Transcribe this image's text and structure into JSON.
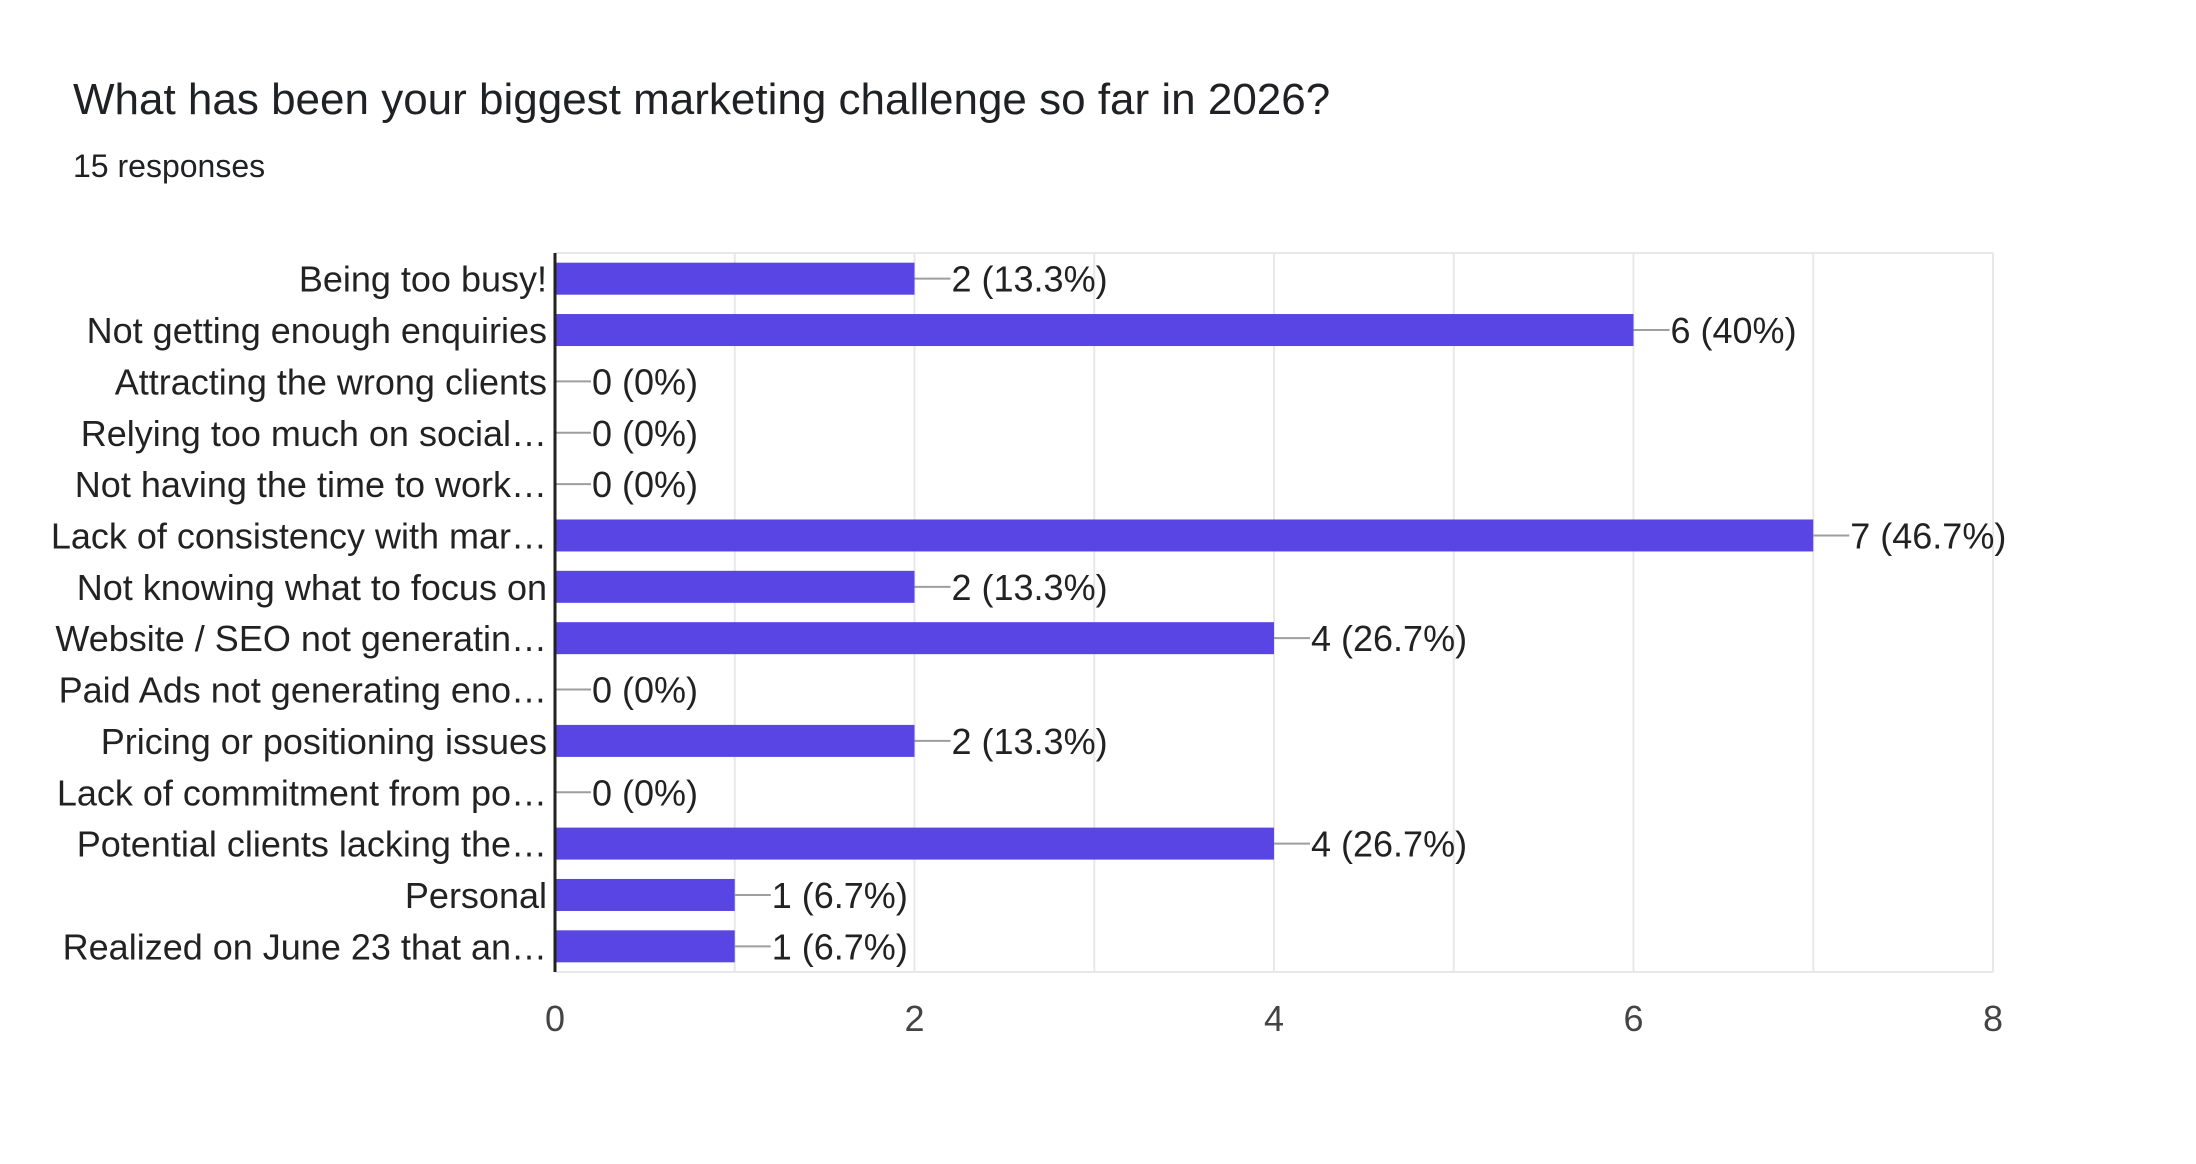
{
  "header": {
    "title": "What has been your biggest marketing challenge so far in 2026?",
    "responses": "15 responses"
  },
  "chart_data": {
    "type": "bar",
    "orientation": "horizontal",
    "categories": [
      "Being too busy!",
      "Not getting enough enquiries",
      "Attracting the wrong clients",
      "Relying too much on social…",
      "Not having the time to work…",
      "Lack of consistency with mar…",
      "Not knowing what to focus on",
      "Website / SEO not generatin…",
      "Paid Ads not generating eno…",
      "Pricing or positioning issues",
      "Lack of commitment from po…",
      "Potential clients lacking the…",
      "Personal",
      "Realized on June 23 that an…"
    ],
    "values": [
      2,
      6,
      0,
      0,
      0,
      7,
      2,
      4,
      0,
      2,
      0,
      4,
      1,
      1
    ],
    "data_labels": [
      "2 (13.3%)",
      "6 (40%)",
      "0 (0%)",
      "0 (0%)",
      "0 (0%)",
      "7 (46.7%)",
      "2 (13.3%)",
      "4 (26.7%)",
      "0 (0%)",
      "2 (13.3%)",
      "0 (0%)",
      "4 (26.7%)",
      "1 (6.7%)",
      "1 (6.7%)"
    ],
    "xlim": [
      0,
      8
    ],
    "xticks": [
      "0",
      "2",
      "4",
      "6",
      "8"
    ],
    "grid": true,
    "legend": "none",
    "colors": {
      "bar": "#5845e3",
      "leader": "#9e9e9e",
      "grid": "#e8e8e8",
      "axis": "#222222"
    }
  }
}
